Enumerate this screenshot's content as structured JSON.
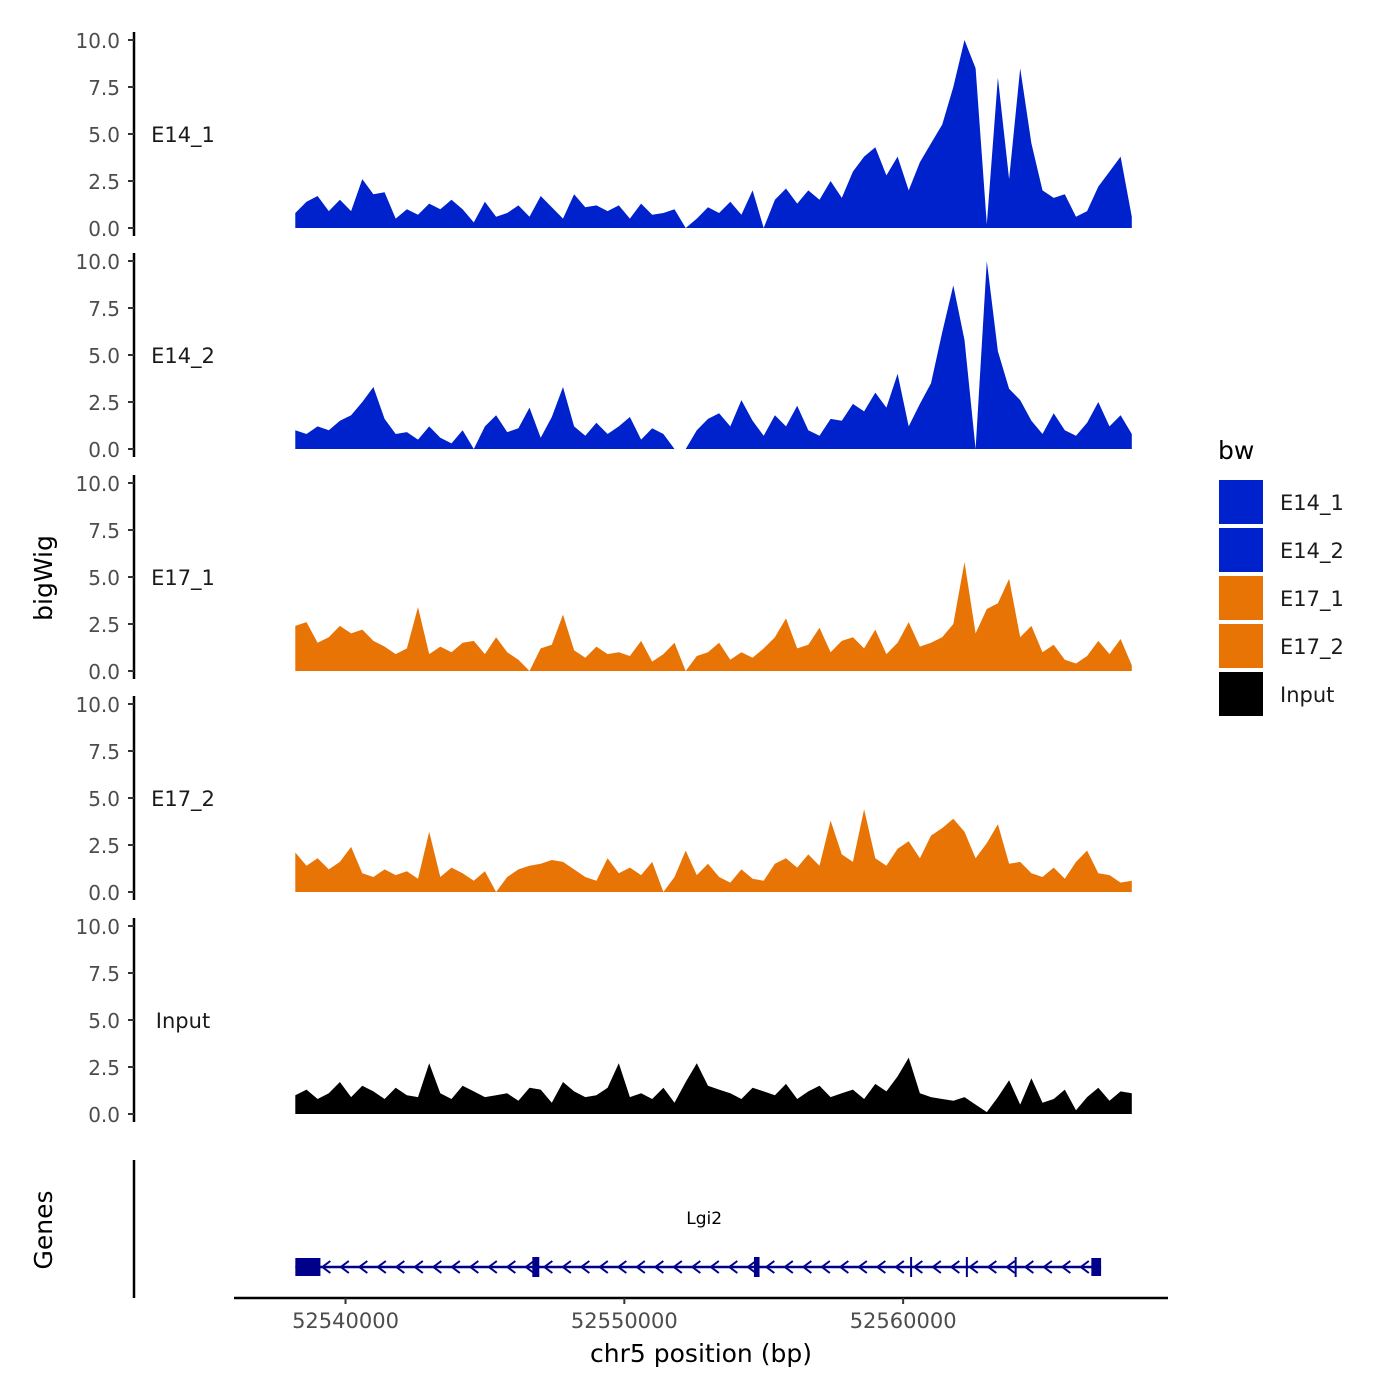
{
  "chart_data": {
    "type": "area",
    "region": "chr5:52538000-52569000",
    "xlabel": "chr5 position (bp)",
    "ylabel_tracks": "bigWig",
    "ylabel_genes": "Genes",
    "xlim": [
      52536000,
      52569500
    ],
    "ylim": [
      0,
      10
    ],
    "yticks": [
      "0.0",
      "2.5",
      "5.0",
      "7.5",
      "10.0"
    ],
    "xticks": [
      {
        "value": 52540000,
        "label": "52540000"
      },
      {
        "value": 52550000,
        "label": "52550000"
      },
      {
        "value": 52560000,
        "label": "52560000"
      }
    ],
    "legend": {
      "title": "bw",
      "position": "right",
      "entries": [
        {
          "label": "E14_1",
          "color": "#0022CC"
        },
        {
          "label": "E14_2",
          "color": "#0022CC"
        },
        {
          "label": "E17_1",
          "color": "#E87405"
        },
        {
          "label": "E17_2",
          "color": "#E87405"
        },
        {
          "label": "Input",
          "color": "#000000"
        }
      ]
    },
    "series": [
      {
        "name": "E14_1",
        "color": "#0022CC",
        "x": [
          52538200,
          52538600,
          52539000,
          52539400,
          52539800,
          52540200,
          52540600,
          52541000,
          52541400,
          52541800,
          52542200,
          52542600,
          52543000,
          52543400,
          52543800,
          52544200,
          52544600,
          52545000,
          52545400,
          52545800,
          52546200,
          52546600,
          52547000,
          52547400,
          52547800,
          52548200,
          52548600,
          52549000,
          52549400,
          52549800,
          52550200,
          52550600,
          52551000,
          52551400,
          52551800,
          52552200,
          52552600,
          52553000,
          52553400,
          52553800,
          52554200,
          52554600,
          52555000,
          52555400,
          52555800,
          52556200,
          52556600,
          52557000,
          52557400,
          52557800,
          52558200,
          52558600,
          52559000,
          52559400,
          52559800,
          52560200,
          52560600,
          52561000,
          52561400,
          52561800,
          52562200,
          52562600,
          52563000,
          52563400,
          52563800,
          52564200,
          52564600,
          52565000,
          52565400,
          52565800,
          52566200,
          52566600,
          52567000,
          52567400,
          52567800,
          52568200
        ],
        "values": [
          0.8,
          1.4,
          1.7,
          0.9,
          1.5,
          0.9,
          2.6,
          1.8,
          1.9,
          0.5,
          1.0,
          0.7,
          1.3,
          1.0,
          1.5,
          1.0,
          0.3,
          1.4,
          0.6,
          0.8,
          1.2,
          0.6,
          1.7,
          1.1,
          0.5,
          1.8,
          1.1,
          1.2,
          0.9,
          1.2,
          0.5,
          1.3,
          0.7,
          0.8,
          1.0,
          0.0,
          0.5,
          1.1,
          0.8,
          1.4,
          0.7,
          2.0,
          0.0,
          1.5,
          2.1,
          1.3,
          2.0,
          1.5,
          2.5,
          1.6,
          3.0,
          3.8,
          4.3,
          2.8,
          3.8,
          2.0,
          3.5,
          4.5,
          5.5,
          7.5,
          10.0,
          8.5,
          0.2,
          8.0,
          2.6,
          8.5,
          4.5,
          2.0,
          1.6,
          1.8,
          0.6,
          0.9,
          2.2,
          3.0,
          3.8,
          0.6
        ]
      },
      {
        "name": "E14_2",
        "color": "#0022CC",
        "x": [
          52538200,
          52538600,
          52539000,
          52539400,
          52539800,
          52540200,
          52540600,
          52541000,
          52541400,
          52541800,
          52542200,
          52542600,
          52543000,
          52543400,
          52543800,
          52544200,
          52544600,
          52545000,
          52545400,
          52545800,
          52546200,
          52546600,
          52547000,
          52547400,
          52547800,
          52548200,
          52548600,
          52549000,
          52549400,
          52549800,
          52550200,
          52550600,
          52551000,
          52551400,
          52551800,
          52552200,
          52552600,
          52553000,
          52553400,
          52553800,
          52554200,
          52554600,
          52555000,
          52555400,
          52555800,
          52556200,
          52556600,
          52557000,
          52557400,
          52557800,
          52558200,
          52558600,
          52559000,
          52559400,
          52559800,
          52560200,
          52560600,
          52561000,
          52561400,
          52561800,
          52562200,
          52562600,
          52563000,
          52563400,
          52563800,
          52564200,
          52564600,
          52565000,
          52565400,
          52565800,
          52566200,
          52566600,
          52567000,
          52567400,
          52567800,
          52568200
        ],
        "values": [
          1.0,
          0.8,
          1.2,
          1.0,
          1.5,
          1.8,
          2.5,
          3.3,
          1.6,
          0.8,
          0.9,
          0.5,
          1.2,
          0.6,
          0.3,
          1.0,
          0.0,
          1.2,
          1.8,
          0.9,
          1.1,
          2.2,
          0.6,
          1.7,
          3.3,
          1.2,
          0.7,
          1.4,
          0.8,
          1.2,
          1.7,
          0.5,
          1.1,
          0.8,
          0.0,
          0.0,
          1.0,
          1.6,
          1.9,
          1.2,
          2.6,
          1.5,
          0.7,
          1.8,
          1.2,
          2.3,
          1.0,
          0.7,
          1.6,
          1.5,
          2.4,
          2.0,
          3.0,
          2.2,
          4.0,
          1.2,
          2.4,
          3.5,
          6.2,
          8.7,
          5.8,
          0.0,
          10.0,
          5.2,
          3.2,
          2.6,
          1.5,
          0.8,
          1.9,
          1.0,
          0.7,
          1.4,
          2.5,
          1.2,
          1.8,
          0.8
        ]
      },
      {
        "name": "E17_1",
        "color": "#E87405",
        "x": [
          52538200,
          52538600,
          52539000,
          52539400,
          52539800,
          52540200,
          52540600,
          52541000,
          52541400,
          52541800,
          52542200,
          52542600,
          52543000,
          52543400,
          52543800,
          52544200,
          52544600,
          52545000,
          52545400,
          52545800,
          52546200,
          52546600,
          52547000,
          52547400,
          52547800,
          52548200,
          52548600,
          52549000,
          52549400,
          52549800,
          52550200,
          52550600,
          52551000,
          52551400,
          52551800,
          52552200,
          52552600,
          52553000,
          52553400,
          52553800,
          52554200,
          52554600,
          52555000,
          52555400,
          52555800,
          52556200,
          52556600,
          52557000,
          52557400,
          52557800,
          52558200,
          52558600,
          52559000,
          52559400,
          52559800,
          52560200,
          52560600,
          52561000,
          52561400,
          52561800,
          52562200,
          52562600,
          52563000,
          52563400,
          52563800,
          52564200,
          52564600,
          52565000,
          52565400,
          52565800,
          52566200,
          52566600,
          52567000,
          52567400,
          52567800,
          52568200
        ],
        "values": [
          2.4,
          2.6,
          1.5,
          1.8,
          2.4,
          2.0,
          2.2,
          1.6,
          1.3,
          0.9,
          1.2,
          3.4,
          0.9,
          1.3,
          1.0,
          1.5,
          1.6,
          0.9,
          1.8,
          1.0,
          0.6,
          0.0,
          1.2,
          1.4,
          3.0,
          1.1,
          0.7,
          1.3,
          0.9,
          1.0,
          0.8,
          1.6,
          0.5,
          0.9,
          1.5,
          0.0,
          0.8,
          1.0,
          1.5,
          0.6,
          1.0,
          0.7,
          1.2,
          1.8,
          2.8,
          1.2,
          1.4,
          2.3,
          1.0,
          1.6,
          1.8,
          1.2,
          2.2,
          0.9,
          1.5,
          2.6,
          1.3,
          1.5,
          1.8,
          2.5,
          5.8,
          2.0,
          3.3,
          3.6,
          4.9,
          1.8,
          2.4,
          1.0,
          1.4,
          0.6,
          0.4,
          0.8,
          1.6,
          0.9,
          1.7,
          0.3
        ]
      },
      {
        "name": "E17_2",
        "color": "#E87405",
        "x": [
          52538200,
          52538600,
          52539000,
          52539400,
          52539800,
          52540200,
          52540600,
          52541000,
          52541400,
          52541800,
          52542200,
          52542600,
          52543000,
          52543400,
          52543800,
          52544200,
          52544600,
          52545000,
          52545400,
          52545800,
          52546200,
          52546600,
          52547000,
          52547400,
          52547800,
          52548200,
          52548600,
          52549000,
          52549400,
          52549800,
          52550200,
          52550600,
          52551000,
          52551400,
          52551800,
          52552200,
          52552600,
          52553000,
          52553400,
          52553800,
          52554200,
          52554600,
          52555000,
          52555400,
          52555800,
          52556200,
          52556600,
          52557000,
          52557400,
          52557800,
          52558200,
          52558600,
          52559000,
          52559400,
          52559800,
          52560200,
          52560600,
          52561000,
          52561400,
          52561800,
          52562200,
          52562600,
          52563000,
          52563400,
          52563800,
          52564200,
          52564600,
          52565000,
          52565400,
          52565800,
          52566200,
          52566600,
          52567000,
          52567400,
          52567800,
          52568200
        ],
        "values": [
          2.1,
          1.4,
          1.8,
          1.2,
          1.6,
          2.4,
          1.0,
          0.8,
          1.2,
          0.9,
          1.1,
          0.7,
          3.2,
          0.8,
          1.3,
          1.0,
          0.6,
          1.1,
          0.0,
          0.8,
          1.2,
          1.4,
          1.5,
          1.7,
          1.6,
          1.2,
          0.8,
          0.6,
          1.8,
          1.0,
          1.3,
          0.9,
          1.6,
          0.0,
          0.8,
          2.2,
          0.9,
          1.5,
          0.8,
          0.5,
          1.2,
          0.7,
          0.6,
          1.5,
          1.8,
          1.3,
          2.0,
          1.4,
          3.8,
          2.0,
          1.6,
          4.4,
          1.8,
          1.4,
          2.3,
          2.7,
          1.8,
          3.0,
          3.4,
          3.9,
          3.2,
          1.8,
          2.6,
          3.6,
          1.5,
          1.6,
          1.0,
          0.8,
          1.3,
          0.7,
          1.6,
          2.2,
          1.0,
          0.9,
          0.5,
          0.6
        ]
      },
      {
        "name": "Input",
        "color": "#000000",
        "x": [
          52538200,
          52538600,
          52539000,
          52539400,
          52539800,
          52540200,
          52540600,
          52541000,
          52541400,
          52541800,
          52542200,
          52542600,
          52543000,
          52543400,
          52543800,
          52544200,
          52544600,
          52545000,
          52545400,
          52545800,
          52546200,
          52546600,
          52547000,
          52547400,
          52547800,
          52548200,
          52548600,
          52549000,
          52549400,
          52549800,
          52550200,
          52550600,
          52551000,
          52551400,
          52551800,
          52552200,
          52552600,
          52553000,
          52553400,
          52553800,
          52554200,
          52554600,
          52555000,
          52555400,
          52555800,
          52556200,
          52556600,
          52557000,
          52557400,
          52557800,
          52558200,
          52558600,
          52559000,
          52559400,
          52559800,
          52560200,
          52560600,
          52561000,
          52561400,
          52561800,
          52562200,
          52562600,
          52563000,
          52563400,
          52563800,
          52564200,
          52564600,
          52565000,
          52565400,
          52565800,
          52566200,
          52566600,
          52567000,
          52567400,
          52567800,
          52568200
        ],
        "values": [
          1.0,
          1.3,
          0.8,
          1.1,
          1.7,
          0.9,
          1.5,
          1.2,
          0.8,
          1.4,
          1.0,
          0.9,
          2.7,
          1.1,
          0.8,
          1.5,
          1.2,
          0.9,
          1.0,
          1.1,
          0.7,
          1.4,
          1.3,
          0.6,
          1.7,
          1.2,
          0.9,
          1.0,
          1.4,
          2.7,
          0.9,
          1.1,
          0.8,
          1.4,
          0.6,
          1.7,
          2.7,
          1.5,
          1.3,
          1.1,
          0.8,
          1.4,
          1.2,
          1.0,
          1.6,
          0.8,
          1.2,
          1.5,
          0.9,
          1.1,
          1.3,
          0.8,
          1.6,
          1.2,
          2.0,
          3.0,
          1.1,
          0.9,
          0.8,
          0.7,
          0.9,
          0.5,
          0.1,
          0.9,
          1.8,
          0.5,
          1.9,
          0.6,
          0.8,
          1.3,
          0.2,
          0.9,
          1.4,
          0.7,
          1.2,
          1.1
        ]
      }
    ],
    "gene_track": {
      "name": "Lgi2",
      "strand": "-",
      "color": "#00008B",
      "start": 52538200,
      "end": 52567100,
      "exons": [
        {
          "start": 52538200,
          "end": 52539100
        },
        {
          "start": 52546700,
          "end": 52546950
        },
        {
          "start": 52554650,
          "end": 52554850
        },
        {
          "start": 52560250,
          "end": 52560320
        },
        {
          "start": 52562250,
          "end": 52562320
        },
        {
          "start": 52564000,
          "end": 52564070
        },
        {
          "start": 52566750,
          "end": 52567100
        }
      ]
    }
  }
}
